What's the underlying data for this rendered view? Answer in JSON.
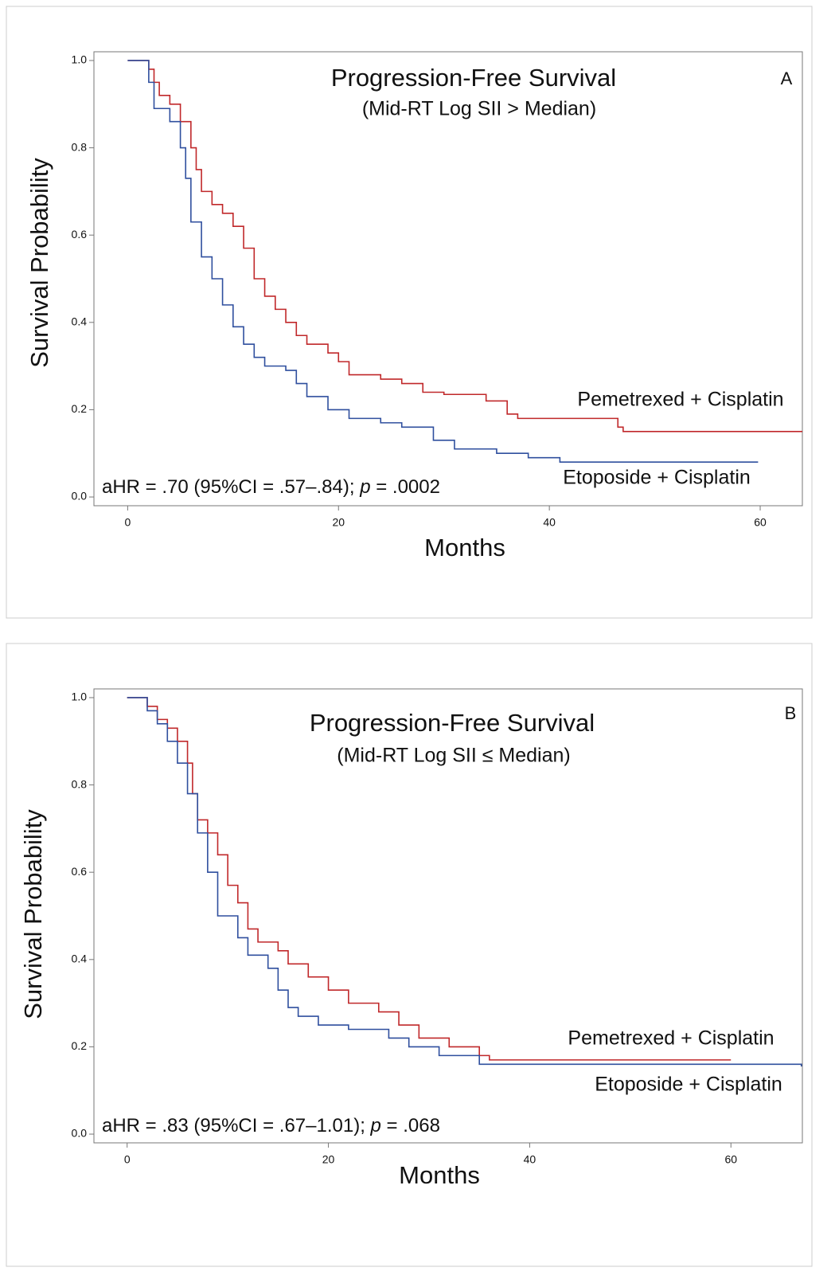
{
  "chart_data": [
    {
      "type": "line",
      "step": true,
      "title": "Progression-Free Survival",
      "subtitle": "(Mid-RT Log SII > Median)",
      "panel": "A",
      "x_label": "Months",
      "y_label": "Survival Probability",
      "annotation": [
        "aHR = .70 (95%CI = .57–.84); ",
        "p",
        " = .0002"
      ],
      "xlim": [
        -3.2,
        64
      ],
      "ylim": [
        -0.02,
        1.02
      ],
      "xticks": [
        0,
        20,
        40,
        60
      ],
      "yticks": [
        {
          "value": 0,
          "label": "0.0"
        },
        {
          "value": 0.2,
          "label": "0.2"
        },
        {
          "value": 0.4,
          "label": "0.4"
        },
        {
          "value": 0.6,
          "label": "0.6"
        },
        {
          "value": 0.8,
          "label": "0.8"
        },
        {
          "value": 1,
          "label": "1.0"
        }
      ],
      "series": [
        {
          "name": "Pemetrexed + Cisplatin",
          "color": "#c0282a",
          "x": [
            0,
            2,
            2.5,
            3,
            4,
            5,
            6,
            6.5,
            7,
            8,
            9,
            10,
            11,
            12,
            13,
            14,
            15,
            16,
            17,
            19,
            20,
            21,
            24,
            26,
            28,
            30,
            34,
            36,
            37,
            42,
            46.5,
            47,
            64
          ],
          "values": [
            1,
            0.98,
            0.95,
            0.92,
            0.9,
            0.86,
            0.8,
            0.75,
            0.7,
            0.67,
            0.65,
            0.62,
            0.57,
            0.5,
            0.46,
            0.43,
            0.4,
            0.37,
            0.35,
            0.33,
            0.31,
            0.28,
            0.27,
            0.26,
            0.24,
            0.235,
            0.22,
            0.19,
            0.18,
            0.18,
            0.16,
            0.15,
            0.15
          ]
        },
        {
          "name": "Etoposide + Cisplatin",
          "color": "#2f4f9e",
          "x": [
            0,
            2,
            2.5,
            4,
            5,
            5.5,
            6,
            7,
            8,
            9,
            10,
            11,
            12,
            13,
            15,
            16,
            17,
            19,
            21,
            24,
            26,
            29,
            31,
            35,
            38,
            41,
            59.8
          ],
          "values": [
            1,
            0.95,
            0.89,
            0.86,
            0.8,
            0.73,
            0.63,
            0.55,
            0.5,
            0.44,
            0.39,
            0.35,
            0.32,
            0.3,
            0.29,
            0.26,
            0.23,
            0.2,
            0.18,
            0.17,
            0.16,
            0.13,
            0.11,
            0.1,
            0.09,
            0.08,
            0.08
          ]
        }
      ]
    },
    {
      "type": "line",
      "step": true,
      "title": "Progression-Free Survival",
      "subtitle": "(Mid-RT Log SII ≤ Median)",
      "panel": "B",
      "x_label": "Months",
      "y_label": "Survival Probability",
      "annotation": [
        "aHR = .83 (95%CI = .67–1.01); ",
        "p",
        " = .068"
      ],
      "xlim": [
        -3.3,
        67.1
      ],
      "ylim": [
        -0.02,
        1.02
      ],
      "xticks": [
        0,
        20,
        40,
        60
      ],
      "yticks": [
        {
          "value": 0,
          "label": "0.0"
        },
        {
          "value": 0.2,
          "label": "0.2"
        },
        {
          "value": 0.4,
          "label": "0.4"
        },
        {
          "value": 0.6,
          "label": "0.6"
        },
        {
          "value": 0.8,
          "label": "0.8"
        },
        {
          "value": 1,
          "label": "1.0"
        }
      ],
      "series": [
        {
          "name": "Pemetrexed + Cisplatin",
          "color": "#c0282a",
          "x": [
            0,
            2,
            3,
            4,
            5,
            6,
            6.5,
            7,
            8,
            9,
            10,
            11,
            12,
            13,
            15,
            16,
            18,
            20,
            22,
            25,
            27,
            29,
            32,
            35,
            36,
            60
          ],
          "values": [
            1,
            0.98,
            0.95,
            0.93,
            0.9,
            0.85,
            0.78,
            0.72,
            0.69,
            0.64,
            0.57,
            0.53,
            0.47,
            0.44,
            0.42,
            0.39,
            0.36,
            0.33,
            0.3,
            0.28,
            0.25,
            0.22,
            0.2,
            0.18,
            0.17,
            0.17
          ]
        },
        {
          "name": "Etoposide + Cisplatin",
          "color": "#2f4f9e",
          "x": [
            0,
            2,
            3,
            4,
            5,
            6,
            7,
            8,
            9,
            11,
            12,
            14,
            15,
            16,
            17,
            19,
            22,
            26,
            28,
            31,
            35,
            40,
            67
          ],
          "values": [
            1,
            0.97,
            0.94,
            0.9,
            0.85,
            0.78,
            0.69,
            0.6,
            0.5,
            0.45,
            0.41,
            0.38,
            0.33,
            0.29,
            0.27,
            0.25,
            0.24,
            0.22,
            0.2,
            0.18,
            0.16,
            0.16,
            0.155
          ]
        }
      ]
    }
  ]
}
